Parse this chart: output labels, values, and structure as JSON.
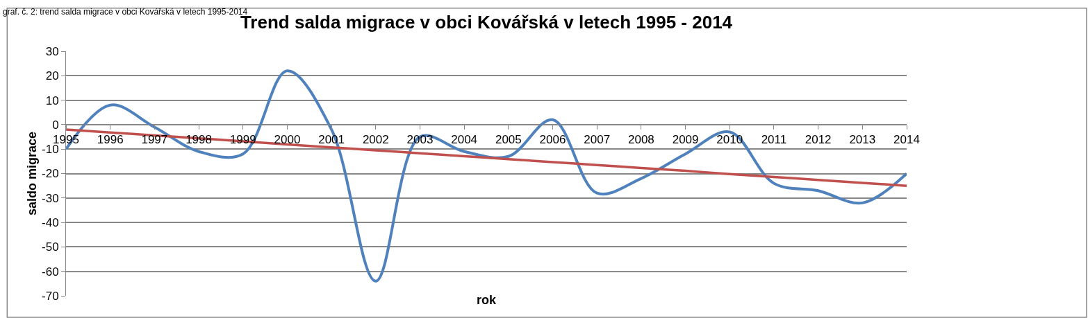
{
  "chart_data": {
    "type": "line",
    "title": "Trend salda migrace v obci Kovářská v letech 1995 - 2014",
    "xlabel": "rok",
    "ylabel": "saldo migrace",
    "annotations": [
      "graf. č. 2: trend salda migrace v obci Kovářská v letech 1995-2014"
    ],
    "categories": [
      "1995",
      "1996",
      "1997",
      "1998",
      "1999",
      "2000",
      "2001",
      "2002",
      "2003",
      "2004",
      "2005",
      "2006",
      "2007",
      "2008",
      "2009",
      "2010",
      "2011",
      "2012",
      "2013",
      "2014"
    ],
    "series": [
      {
        "color": "#4f81bd",
        "values": [
          -10,
          8,
          -1,
          -11,
          -12,
          22,
          -2,
          -64,
          -5,
          -11,
          -13,
          2,
          -28,
          -22,
          -12,
          -3,
          -24,
          -27,
          -32,
          -20
        ]
      },
      {
        "color": "#c0504d",
        "values": [
          -2,
          -3.2,
          -4.4,
          -5.6,
          -6.8,
          -8.1,
          -9.3,
          -10.5,
          -11.7,
          -12.9,
          -14.1,
          -15.3,
          -16.5,
          -17.7,
          -18.9,
          -20.2,
          -21.4,
          -22.6,
          -23.8,
          -25
        ]
      }
    ],
    "ylim": [
      -70,
      30
    ],
    "yticks": [
      -70,
      -60,
      -50,
      -40,
      -30,
      -20,
      -10,
      0,
      10,
      20,
      30
    ],
    "grid": "y",
    "marker": "none"
  }
}
